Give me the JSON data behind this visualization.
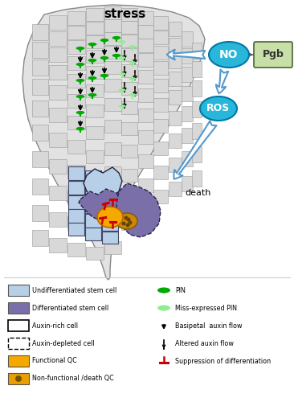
{
  "title": "stress",
  "title_fontsize": 11,
  "title_fontweight": "bold",
  "background_color": "#ffffff",
  "fig_width": 3.66,
  "fig_height": 5.0,
  "legend_items_left": [
    {
      "label": "Undifferentiated stem cell",
      "color": "#b8cfe8",
      "type": "rect_solid"
    },
    {
      "label": "Differentiated stem cell",
      "color": "#7b6faa",
      "type": "rect_solid"
    },
    {
      "label": "Auxin-rich cell",
      "color": "#ffffff",
      "type": "rect_solid_border"
    },
    {
      "label": "Auxin-depleted cell",
      "color": "#ffffff",
      "type": "rect_dashed_border"
    },
    {
      "label": "Functional QC",
      "color": "#f5a800",
      "type": "rect_solid"
    },
    {
      "label": "Non-functional /death QC",
      "color": "#e8a000",
      "type": "rect_spotted"
    }
  ],
  "legend_items_right": [
    {
      "label": "PIN",
      "color": "#00aa00",
      "type": "pin_solid"
    },
    {
      "label": "Miss-expressed PIN",
      "color": "#90ee90",
      "type": "pin_light"
    },
    {
      "label": "Basipetal  auxin flow",
      "color": "#000000",
      "type": "arrow_solid"
    },
    {
      "label": "Altered auxin flow",
      "color": "#000000",
      "type": "arrow_dashed"
    },
    {
      "label": "Suppression of differentiation",
      "color": "#cc0000",
      "type": "t_bar"
    }
  ],
  "NO_label": "NO",
  "Pgb_label": "Pgb",
  "ROS_label": "ROS",
  "death_label": "death",
  "NO_color": "#29b6d8",
  "Pgb_color": "#c8e0a8",
  "ROS_color": "#29b6d8",
  "cell_fill_color": "#d8d8d8",
  "undiff_color": "#b8cfe8",
  "diff_color": "#7b6faa",
  "qc_color": "#f5a800",
  "qc_death_color": "#c8880a",
  "pin_green": "#00aa00",
  "pin_light": "#90ee90",
  "suppress_red": "#cc0000",
  "blue_arrow": "#5599cc"
}
